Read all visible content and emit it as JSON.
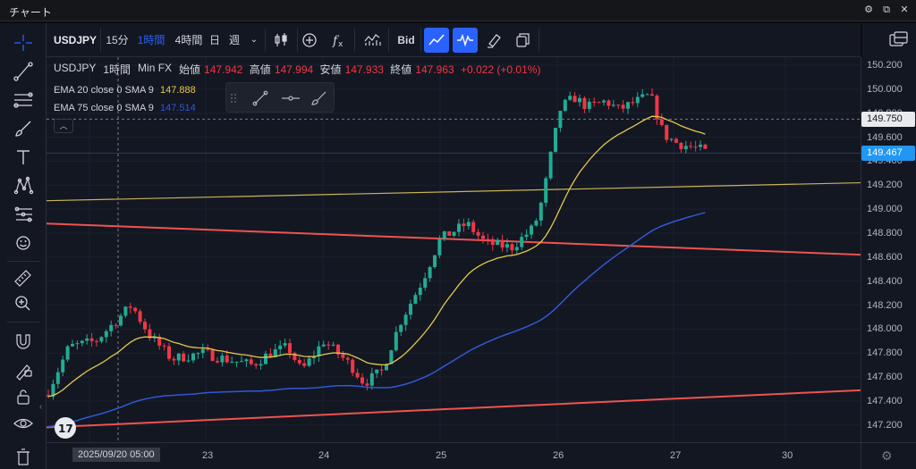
{
  "window": {
    "title": "チャート"
  },
  "toolbar": {
    "symbol": "USDJPY",
    "intervals": [
      "15分",
      "1時間",
      "4時間",
      "日",
      "週"
    ],
    "active_interval": "1時間",
    "bid_label": "Bid"
  },
  "legend": {
    "symbol": "USDJPY",
    "interval": "1時間",
    "source": "Min FX",
    "open_label": "始値",
    "open": "147.942",
    "high_label": "高値",
    "high": "147.994",
    "low_label": "安値",
    "low": "147.933",
    "close_label": "終値",
    "close": "147.963",
    "change": "+0.022 (+0.01%)",
    "ema20_label": "EMA 20 close 0 SMA 9",
    "ema20_value": "147.888",
    "ema75_label": "EMA 75 close 0 SMA 9",
    "ema75_value": "147.514"
  },
  "price_axis": {
    "labels": [
      "150.200",
      "150.000",
      "149.800",
      "149.600",
      "149.400",
      "149.200",
      "149.000",
      "148.800",
      "148.600",
      "148.400",
      "148.200",
      "148.000",
      "147.800",
      "147.600",
      "147.400",
      "147.200"
    ],
    "crosshair_price": "149.750",
    "last_price": "149.467"
  },
  "time_axis": {
    "cursor_label": "2025/09/20  05:00",
    "labels": [
      "23",
      "24",
      "25",
      "26",
      "27",
      "30"
    ]
  },
  "colors": {
    "up": "#089981",
    "up_bright": "#22ab94",
    "down": "#f23645",
    "ema20": "#e6c84a",
    "ema75": "#2f59d6",
    "trend_red": "#ef5350",
    "trend_yellow": "#c9b458",
    "accent": "#2962ff"
  },
  "icons": {
    "left_tools": [
      "crosshair-icon",
      "trendline-icon",
      "fib-icon",
      "brush-icon",
      "text-icon",
      "pattern-icon",
      "forecast-icon",
      "emoji-icon",
      "ruler-icon",
      "zoom-in-icon",
      "magnet-icon",
      "lock-drawing-icon",
      "unlock-icon",
      "eye-icon",
      "trash-icon"
    ],
    "toolbar": [
      "candles-icon",
      "add-indicator-icon",
      "fx-icon",
      "indicators-icon",
      "line-chart-icon",
      "wave-icon",
      "brush-clear-icon",
      "copy-icon",
      "layout-icon"
    ]
  }
}
